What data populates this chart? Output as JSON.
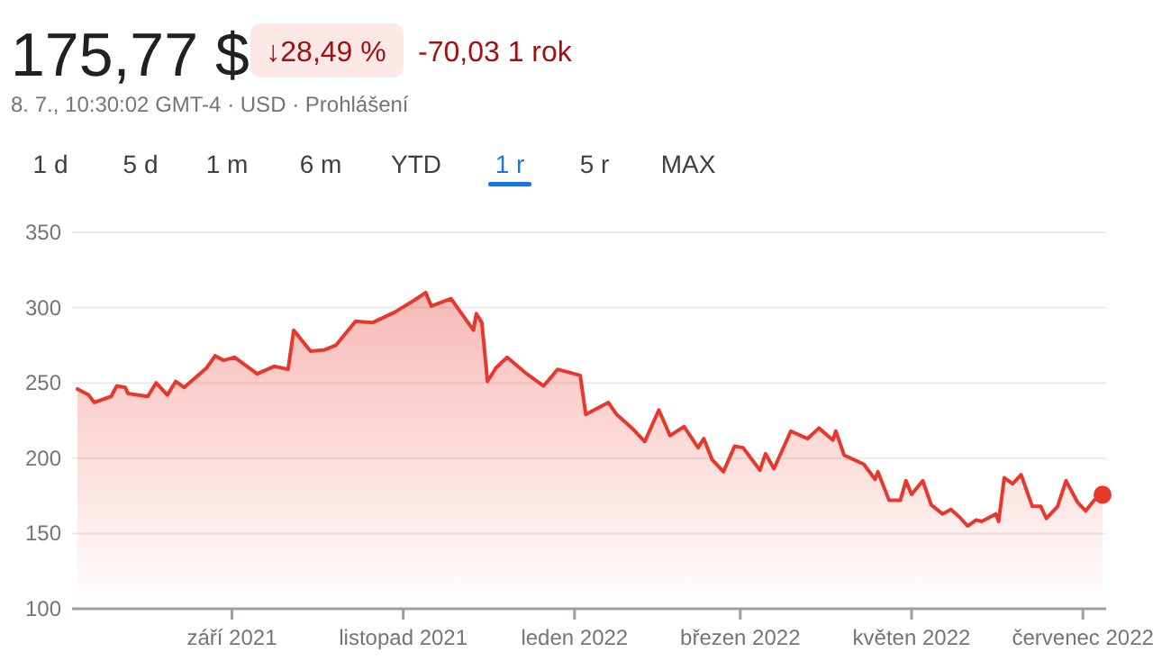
{
  "chart_data": {
    "type": "area",
    "title": "175,77 $",
    "subtitle": "8. 7., 10:30:02 GMT-4 · USD · Prohlášení",
    "annotations": [
      "↓28,49 %",
      "-70,03 1 rok",
      "1 d",
      "5 d",
      "1 m",
      "6 m",
      "YTD",
      "1 r",
      "5 r",
      "MAX"
    ],
    "xlim": [
      "2021-07-08",
      "2022-07-08"
    ],
    "xticks": [
      {
        "value": "2021-09-01",
        "label": "září 2021"
      },
      {
        "value": "2021-11-01",
        "label": "listopad 2021"
      },
      {
        "value": "2022-01-01",
        "label": "leden 2022"
      },
      {
        "value": "2022-03-01",
        "label": "březen 2022"
      },
      {
        "value": "2022-05-01",
        "label": "květen 2022"
      },
      {
        "value": "2022-07-01",
        "label": "červenec 2022"
      }
    ],
    "ylim": [
      100,
      350
    ],
    "yticks": [
      100,
      150,
      200,
      250,
      300,
      350
    ],
    "grid": "y",
    "marker": "none",
    "line_style": "solid",
    "series": [
      {
        "color": "#e8382c",
        "x": [
          "2021-07-08",
          "2021-07-12",
          "2021-07-14",
          "2021-07-20",
          "2021-07-22",
          "2021-07-25",
          "2021-07-26",
          "2021-08-02",
          "2021-08-05",
          "2021-08-09",
          "2021-08-12",
          "2021-08-15",
          "2021-08-23",
          "2021-08-26",
          "2021-08-29",
          "2021-09-02",
          "2021-09-10",
          "2021-09-16",
          "2021-09-21",
          "2021-09-23",
          "2021-09-29",
          "2021-10-04",
          "2021-10-08",
          "2021-10-15",
          "2021-10-21",
          "2021-10-29",
          "2021-11-05",
          "2021-11-09",
          "2021-11-11",
          "2021-11-18",
          "2021-11-26",
          "2021-11-27",
          "2021-11-29",
          "2021-12-01",
          "2021-12-04",
          "2021-12-08",
          "2021-12-15",
          "2021-12-21",
          "2021-12-26",
          "2022-01-03",
          "2022-01-05",
          "2022-01-13",
          "2022-01-16",
          "2022-01-22",
          "2022-01-26",
          "2022-01-31",
          "2022-02-04",
          "2022-02-09",
          "2022-02-14",
          "2022-02-16",
          "2022-02-19",
          "2022-02-23",
          "2022-02-27",
          "2022-03-02",
          "2022-03-08",
          "2022-03-10",
          "2022-03-13",
          "2022-03-19",
          "2022-03-25",
          "2022-03-29",
          "2022-04-03",
          "2022-04-04",
          "2022-04-07",
          "2022-04-14",
          "2022-04-18",
          "2022-04-19",
          "2022-04-23",
          "2022-04-27",
          "2022-04-29",
          "2022-05-01",
          "2022-05-05",
          "2022-05-08",
          "2022-05-12",
          "2022-05-15",
          "2022-05-18",
          "2022-05-21",
          "2022-05-24",
          "2022-05-26",
          "2022-05-31",
          "2022-06-01",
          "2022-06-03",
          "2022-06-06",
          "2022-06-09",
          "2022-06-13",
          "2022-06-16",
          "2022-06-18",
          "2022-06-22",
          "2022-06-25",
          "2022-06-29",
          "2022-07-02",
          "2022-07-05",
          "2022-07-08"
        ],
        "values": [
          246,
          242,
          237,
          241,
          248,
          247,
          243,
          241,
          250,
          242,
          251,
          247,
          260,
          268,
          265,
          267,
          256,
          261,
          259,
          285,
          271,
          272,
          275,
          291,
          290,
          297,
          305,
          310,
          301,
          306,
          285,
          296,
          290,
          251,
          260,
          267,
          256,
          248,
          259,
          255,
          229,
          237,
          229,
          219,
          211,
          232,
          215,
          221,
          207,
          213,
          199,
          191,
          208,
          207,
          192,
          203,
          193,
          218,
          213,
          220,
          212,
          218,
          202,
          196,
          186,
          191,
          172,
          172,
          185,
          176,
          185,
          169,
          163,
          166,
          161,
          155,
          159,
          158,
          163,
          158,
          187,
          183,
          189,
          168,
          168,
          160,
          168,
          185,
          171,
          165,
          172,
          175.77
        ]
      }
    ]
  }
}
